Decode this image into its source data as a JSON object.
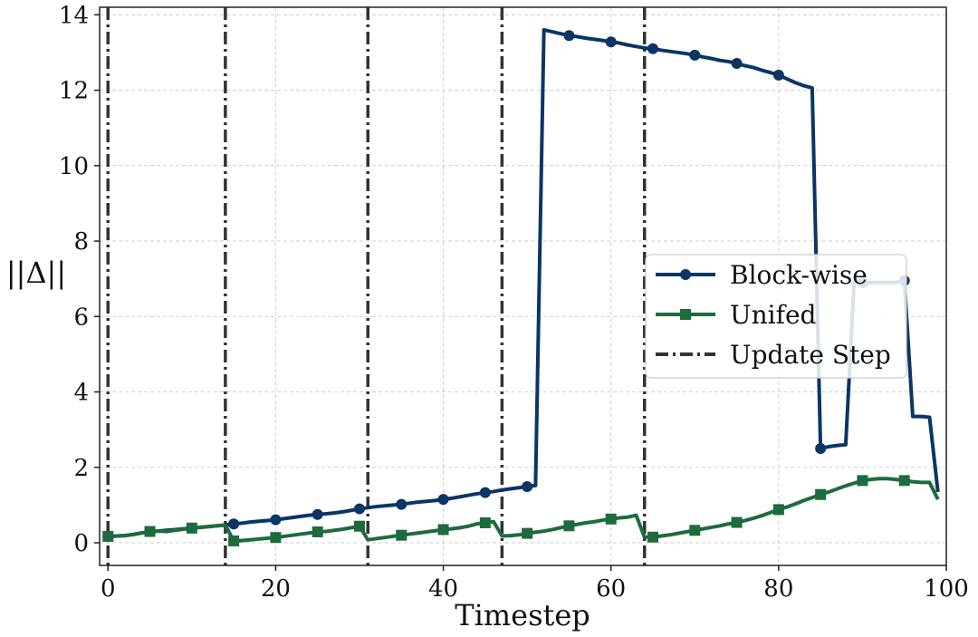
{
  "chart_data": {
    "type": "line",
    "xlabel": "Timestep",
    "ylabel": "||Δ||",
    "xlim": [
      -1,
      100
    ],
    "ylim": [
      -0.6,
      14.2
    ],
    "xticks": [
      0,
      20,
      40,
      60,
      80,
      100
    ],
    "yticks": [
      0,
      2,
      4,
      6,
      8,
      10,
      12,
      14
    ],
    "xtick_labels": [
      "0",
      "20",
      "40",
      "60",
      "80",
      "100"
    ],
    "ytick_labels": [
      "0",
      "2",
      "4",
      "6",
      "8",
      "10",
      "12",
      "14"
    ],
    "grid": true,
    "legend_position": "center-right",
    "update_steps": [
      0,
      14,
      31,
      47,
      64
    ],
    "series": [
      {
        "name": "Block-wise",
        "color": "#0b3566",
        "marker": "circle",
        "x": [
          0,
          1,
          2,
          3,
          4,
          5,
          6,
          7,
          8,
          9,
          10,
          11,
          12,
          13,
          14,
          15,
          16,
          17,
          18,
          19,
          20,
          21,
          22,
          23,
          24,
          25,
          26,
          27,
          28,
          29,
          30,
          31,
          32,
          33,
          34,
          35,
          36,
          37,
          38,
          39,
          40,
          41,
          42,
          43,
          44,
          45,
          46,
          47,
          48,
          49,
          50,
          51,
          52,
          53,
          54,
          55,
          56,
          57,
          58,
          59,
          60,
          61,
          62,
          63,
          64,
          65,
          66,
          67,
          68,
          69,
          70,
          71,
          72,
          73,
          74,
          75,
          76,
          77,
          78,
          79,
          80,
          81,
          82,
          83,
          84,
          85,
          86,
          87,
          88,
          89,
          90,
          91,
          92,
          93,
          94,
          95,
          96,
          97,
          98,
          99
        ],
        "y": [
          0.17,
          0.18,
          0.19,
          0.22,
          0.26,
          0.3,
          0.31,
          0.33,
          0.35,
          0.37,
          0.39,
          0.41,
          0.43,
          0.45,
          0.47,
          0.5,
          0.52,
          0.55,
          0.57,
          0.59,
          0.61,
          0.64,
          0.67,
          0.7,
          0.73,
          0.75,
          0.77,
          0.79,
          0.82,
          0.86,
          0.9,
          0.93,
          0.96,
          0.98,
          1.0,
          1.02,
          1.05,
          1.08,
          1.1,
          1.12,
          1.15,
          1.18,
          1.22,
          1.26,
          1.3,
          1.33,
          1.36,
          1.4,
          1.43,
          1.46,
          1.49,
          1.52,
          13.6,
          13.55,
          13.5,
          13.45,
          13.42,
          13.38,
          13.35,
          13.32,
          13.28,
          13.25,
          13.2,
          13.16,
          13.12,
          13.1,
          13.06,
          13.03,
          13.0,
          12.97,
          12.93,
          12.88,
          12.84,
          12.79,
          12.76,
          12.71,
          12.65,
          12.6,
          12.53,
          12.47,
          12.4,
          12.3,
          12.2,
          12.12,
          12.06,
          2.5,
          2.55,
          2.58,
          2.6,
          6.9,
          6.9,
          6.9,
          6.9,
          6.9,
          6.9,
          6.95,
          3.35,
          3.35,
          3.33,
          1.35
        ],
        "markers_at": [
          0,
          5,
          10,
          15,
          20,
          25,
          30,
          35,
          40,
          45,
          50,
          55,
          60,
          65,
          70,
          75,
          80,
          85,
          90,
          95
        ]
      },
      {
        "name": "Unifed",
        "color": "#1e6b3e",
        "marker": "square",
        "x": [
          0,
          1,
          2,
          3,
          4,
          5,
          6,
          7,
          8,
          9,
          10,
          11,
          12,
          13,
          14,
          15,
          16,
          17,
          18,
          19,
          20,
          21,
          22,
          23,
          24,
          25,
          26,
          27,
          28,
          29,
          30,
          31,
          32,
          33,
          34,
          35,
          36,
          37,
          38,
          39,
          40,
          41,
          42,
          43,
          44,
          45,
          46,
          47,
          48,
          49,
          50,
          51,
          52,
          53,
          54,
          55,
          56,
          57,
          58,
          59,
          60,
          61,
          62,
          63,
          64,
          65,
          66,
          67,
          68,
          69,
          70,
          71,
          72,
          73,
          74,
          75,
          76,
          77,
          78,
          79,
          80,
          81,
          82,
          83,
          84,
          85,
          86,
          87,
          88,
          89,
          90,
          91,
          92,
          93,
          94,
          95,
          96,
          97,
          98,
          99
        ],
        "y": [
          0.17,
          0.18,
          0.19,
          0.22,
          0.26,
          0.3,
          0.31,
          0.3,
          0.33,
          0.36,
          0.39,
          0.41,
          0.43,
          0.45,
          0.47,
          0.05,
          0.06,
          0.08,
          0.1,
          0.12,
          0.14,
          0.17,
          0.2,
          0.23,
          0.26,
          0.29,
          0.3,
          0.33,
          0.36,
          0.4,
          0.44,
          0.08,
          0.11,
          0.14,
          0.17,
          0.2,
          0.23,
          0.26,
          0.29,
          0.32,
          0.35,
          0.37,
          0.4,
          0.44,
          0.5,
          0.53,
          0.56,
          0.18,
          0.19,
          0.21,
          0.25,
          0.28,
          0.31,
          0.35,
          0.4,
          0.45,
          0.49,
          0.53,
          0.56,
          0.6,
          0.63,
          0.66,
          0.68,
          0.73,
          0.15,
          0.15,
          0.18,
          0.21,
          0.25,
          0.29,
          0.33,
          0.37,
          0.41,
          0.45,
          0.5,
          0.54,
          0.59,
          0.65,
          0.72,
          0.8,
          0.88,
          0.95,
          1.03,
          1.12,
          1.2,
          1.28,
          1.35,
          1.43,
          1.51,
          1.58,
          1.65,
          1.68,
          1.7,
          1.7,
          1.68,
          1.65,
          1.62,
          1.6,
          1.6,
          1.15
        ],
        "markers_at": [
          0,
          5,
          10,
          15,
          20,
          25,
          30,
          35,
          40,
          45,
          50,
          55,
          60,
          65,
          70,
          75,
          80,
          85,
          90,
          95
        ]
      }
    ],
    "legend_entries": [
      "Block-wise",
      "Unifed",
      "Update Step"
    ]
  }
}
